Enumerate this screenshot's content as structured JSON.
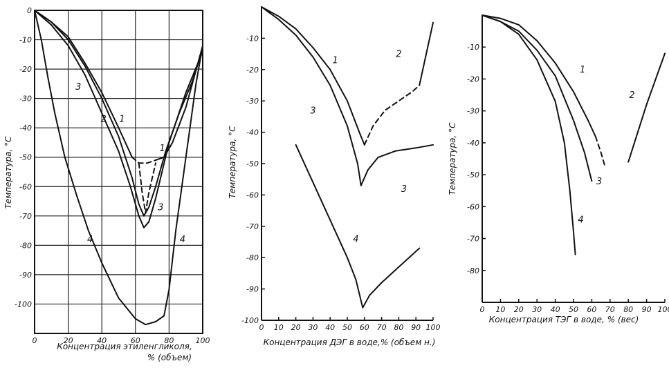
{
  "chart_data": [
    {
      "type": "line",
      "xlabel": "Концентрация этиленгликоля,",
      "xlabel_line2": "% (объем)",
      "ylabel": "Температура, °С",
      "xlim": [
        0,
        100
      ],
      "ylim": [
        -110,
        0
      ],
      "x_ticks": [
        0,
        20,
        40,
        60,
        80,
        100
      ],
      "y_ticks": [
        0,
        -10,
        -20,
        -30,
        -40,
        -50,
        -60,
        -70,
        -80,
        -90,
        -100
      ],
      "grid": true,
      "series": [
        {
          "name": "1",
          "style": "solid",
          "points": [
            [
              0,
              0
            ],
            [
              10,
              -4
            ],
            [
              20,
              -9
            ],
            [
              30,
              -18
            ],
            [
              40,
              -28
            ],
            [
              50,
              -40
            ],
            [
              58,
              -50
            ]
          ]
        },
        {
          "name": "1",
          "style": "dashed",
          "points": [
            [
              58,
              -50
            ],
            [
              62,
              -52
            ],
            [
              67,
              -52
            ],
            [
              72,
              -51
            ]
          ]
        },
        {
          "name": "1",
          "style": "solid",
          "points": [
            [
              72,
              -51
            ],
            [
              77,
              -50
            ],
            [
              82,
              -45
            ],
            [
              90,
              -33
            ],
            [
              100,
              -12
            ]
          ]
        },
        {
          "name": "2",
          "style": "solid",
          "points": [
            [
              0,
              0
            ],
            [
              10,
              -4
            ],
            [
              20,
              -10
            ],
            [
              30,
              -19
            ],
            [
              40,
              -30
            ],
            [
              50,
              -43
            ],
            [
              58,
              -57
            ],
            [
              62,
              -66
            ],
            [
              65,
              -70
            ],
            [
              68,
              -67
            ],
            [
              72,
              -60
            ],
            [
              78,
              -48
            ],
            [
              86,
              -35
            ],
            [
              94,
              -24
            ],
            [
              100,
              -13
            ]
          ]
        },
        {
          "name": "3",
          "style": "solid",
          "points": [
            [
              0,
              0
            ],
            [
              10,
              -5
            ],
            [
              20,
              -12
            ],
            [
              30,
              -22
            ],
            [
              40,
              -35
            ],
            [
              50,
              -48
            ],
            [
              57,
              -60
            ],
            [
              62,
              -70
            ],
            [
              65,
              -74
            ],
            [
              68,
              -72
            ],
            [
              72,
              -64
            ],
            [
              80,
              -45
            ],
            [
              90,
              -28
            ],
            [
              100,
              -14
            ]
          ]
        },
        {
          "name": "3",
          "style": "dashed",
          "points": [
            [
              62,
              -52
            ],
            [
              64,
              -62
            ],
            [
              66,
              -69
            ],
            [
              68,
              -62
            ],
            [
              72,
              -52
            ]
          ]
        },
        {
          "name": "4",
          "style": "solid",
          "points": [
            [
              0,
              0
            ],
            [
              4,
              -10
            ],
            [
              8,
              -23
            ],
            [
              12,
              -35
            ],
            [
              18,
              -50
            ],
            [
              25,
              -63
            ],
            [
              32,
              -75
            ],
            [
              40,
              -86
            ],
            [
              50,
              -98
            ],
            [
              60,
              -105
            ],
            [
              66,
              -107
            ],
            [
              72,
              -106
            ],
            [
              77,
              -104
            ],
            [
              80,
              -95
            ],
            [
              84,
              -75
            ],
            [
              90,
              -50
            ],
            [
              96,
              -25
            ],
            [
              100,
              -12
            ]
          ]
        }
      ],
      "curve_labels": [
        {
          "text": "1",
          "x": 52,
          "y": -38
        },
        {
          "text": "2",
          "x": 41,
          "y": -38
        },
        {
          "text": "3",
          "x": 26,
          "y": -27
        },
        {
          "text": "1",
          "x": 76,
          "y": -48
        },
        {
          "text": "3",
          "x": 75,
          "y": -68
        },
        {
          "text": "4",
          "x": 33,
          "y": -79
        },
        {
          "text": "4",
          "x": 88,
          "y": -79
        }
      ]
    },
    {
      "type": "line",
      "xlabel": "Концентрация ДЭГ в воде,% (объем н.)",
      "ylabel": "Температура, °С",
      "xlim": [
        0,
        100
      ],
      "ylim": [
        -100,
        0
      ],
      "x_ticks": [
        0,
        10,
        20,
        30,
        40,
        50,
        60,
        70,
        80,
        90,
        100
      ],
      "y_ticks": [
        -10,
        -20,
        -30,
        -40,
        -50,
        -60,
        -70,
        -80,
        -90,
        -100
      ],
      "grid": false,
      "series": [
        {
          "name": "1",
          "style": "solid",
          "points": [
            [
              0,
              0
            ],
            [
              10,
              -3
            ],
            [
              20,
              -7
            ],
            [
              30,
              -13
            ],
            [
              40,
              -20
            ],
            [
              50,
              -30
            ],
            [
              57,
              -40
            ],
            [
              60,
              -44
            ]
          ]
        },
        {
          "name": "2",
          "style": "dashed",
          "points": [
            [
              60,
              -44
            ],
            [
              65,
              -38
            ],
            [
              72,
              -33
            ],
            [
              80,
              -30
            ],
            [
              88,
              -27
            ],
            [
              92,
              -25
            ]
          ]
        },
        {
          "name": "2",
          "style": "solid",
          "points": [
            [
              92,
              -25
            ],
            [
              96,
              -15
            ],
            [
              100,
              -5
            ]
          ]
        },
        {
          "name": "3",
          "style": "solid",
          "points": [
            [
              0,
              0
            ],
            [
              10,
              -4
            ],
            [
              20,
              -9
            ],
            [
              30,
              -16
            ],
            [
              40,
              -25
            ],
            [
              50,
              -38
            ],
            [
              56,
              -50
            ],
            [
              58,
              -57
            ],
            [
              62,
              -52
            ],
            [
              68,
              -48
            ],
            [
              78,
              -46
            ],
            [
              90,
              -45
            ],
            [
              100,
              -44
            ]
          ]
        },
        {
          "name": "4",
          "style": "solid",
          "points": [
            [
              20,
              -44
            ],
            [
              30,
              -56
            ],
            [
              40,
              -68
            ],
            [
              50,
              -80
            ],
            [
              55,
              -87
            ],
            [
              59,
              -96
            ],
            [
              63,
              -92
            ],
            [
              70,
              -88
            ],
            [
              80,
              -83
            ],
            [
              90,
              -78
            ],
            [
              92,
              -77
            ]
          ]
        }
      ],
      "curve_labels": [
        {
          "text": "1",
          "x": 43,
          "y": -18
        },
        {
          "text": "2",
          "x": 80,
          "y": -16
        },
        {
          "text": "3",
          "x": 30,
          "y": -34
        },
        {
          "text": "3",
          "x": 83,
          "y": -59
        },
        {
          "text": "4",
          "x": 55,
          "y": -75
        }
      ]
    },
    {
      "type": "line",
      "xlabel": "Концентрация ТЭГ в воде, % (вес)",
      "ylabel": "Температура, °С",
      "xlim": [
        0,
        100
      ],
      "ylim": [
        -90,
        0
      ],
      "x_ticks": [
        0,
        10,
        20,
        30,
        40,
        50,
        60,
        70,
        80,
        90,
        100
      ],
      "y_ticks": [
        -10,
        -20,
        -30,
        -40,
        -50,
        -60,
        -70,
        -80
      ],
      "grid": false,
      "series": [
        {
          "name": "1",
          "style": "solid",
          "points": [
            [
              0,
              0
            ],
            [
              10,
              -1
            ],
            [
              20,
              -3
            ],
            [
              30,
              -8
            ],
            [
              40,
              -15
            ],
            [
              50,
              -24
            ],
            [
              58,
              -33
            ],
            [
              62,
              -38
            ]
          ]
        },
        {
          "name": "1",
          "style": "dashed",
          "points": [
            [
              62,
              -38
            ],
            [
              65,
              -43
            ],
            [
              67,
              -47
            ]
          ]
        },
        {
          "name": "3",
          "style": "solid",
          "points": [
            [
              0,
              0
            ],
            [
              10,
              -2
            ],
            [
              20,
              -5
            ],
            [
              30,
              -11
            ],
            [
              40,
              -19
            ],
            [
              50,
              -33
            ],
            [
              56,
              -43
            ],
            [
              60,
              -52
            ]
          ]
        },
        {
          "name": "4",
          "style": "solid",
          "points": [
            [
              0,
              0
            ],
            [
              10,
              -2
            ],
            [
              20,
              -6
            ],
            [
              30,
              -14
            ],
            [
              40,
              -27
            ],
            [
              45,
              -40
            ],
            [
              48,
              -55
            ],
            [
              50,
              -68
            ],
            [
              51,
              -75
            ]
          ]
        },
        {
          "name": "2",
          "style": "solid",
          "points": [
            [
              80,
              -46
            ],
            [
              90,
              -28
            ],
            [
              100,
              -12
            ]
          ]
        }
      ],
      "curve_labels": [
        {
          "text": "1",
          "x": 55,
          "y": -18
        },
        {
          "text": "2",
          "x": 82,
          "y": -26
        },
        {
          "text": "3",
          "x": 64,
          "y": -53
        },
        {
          "text": "4",
          "x": 54,
          "y": -65
        }
      ]
    }
  ]
}
